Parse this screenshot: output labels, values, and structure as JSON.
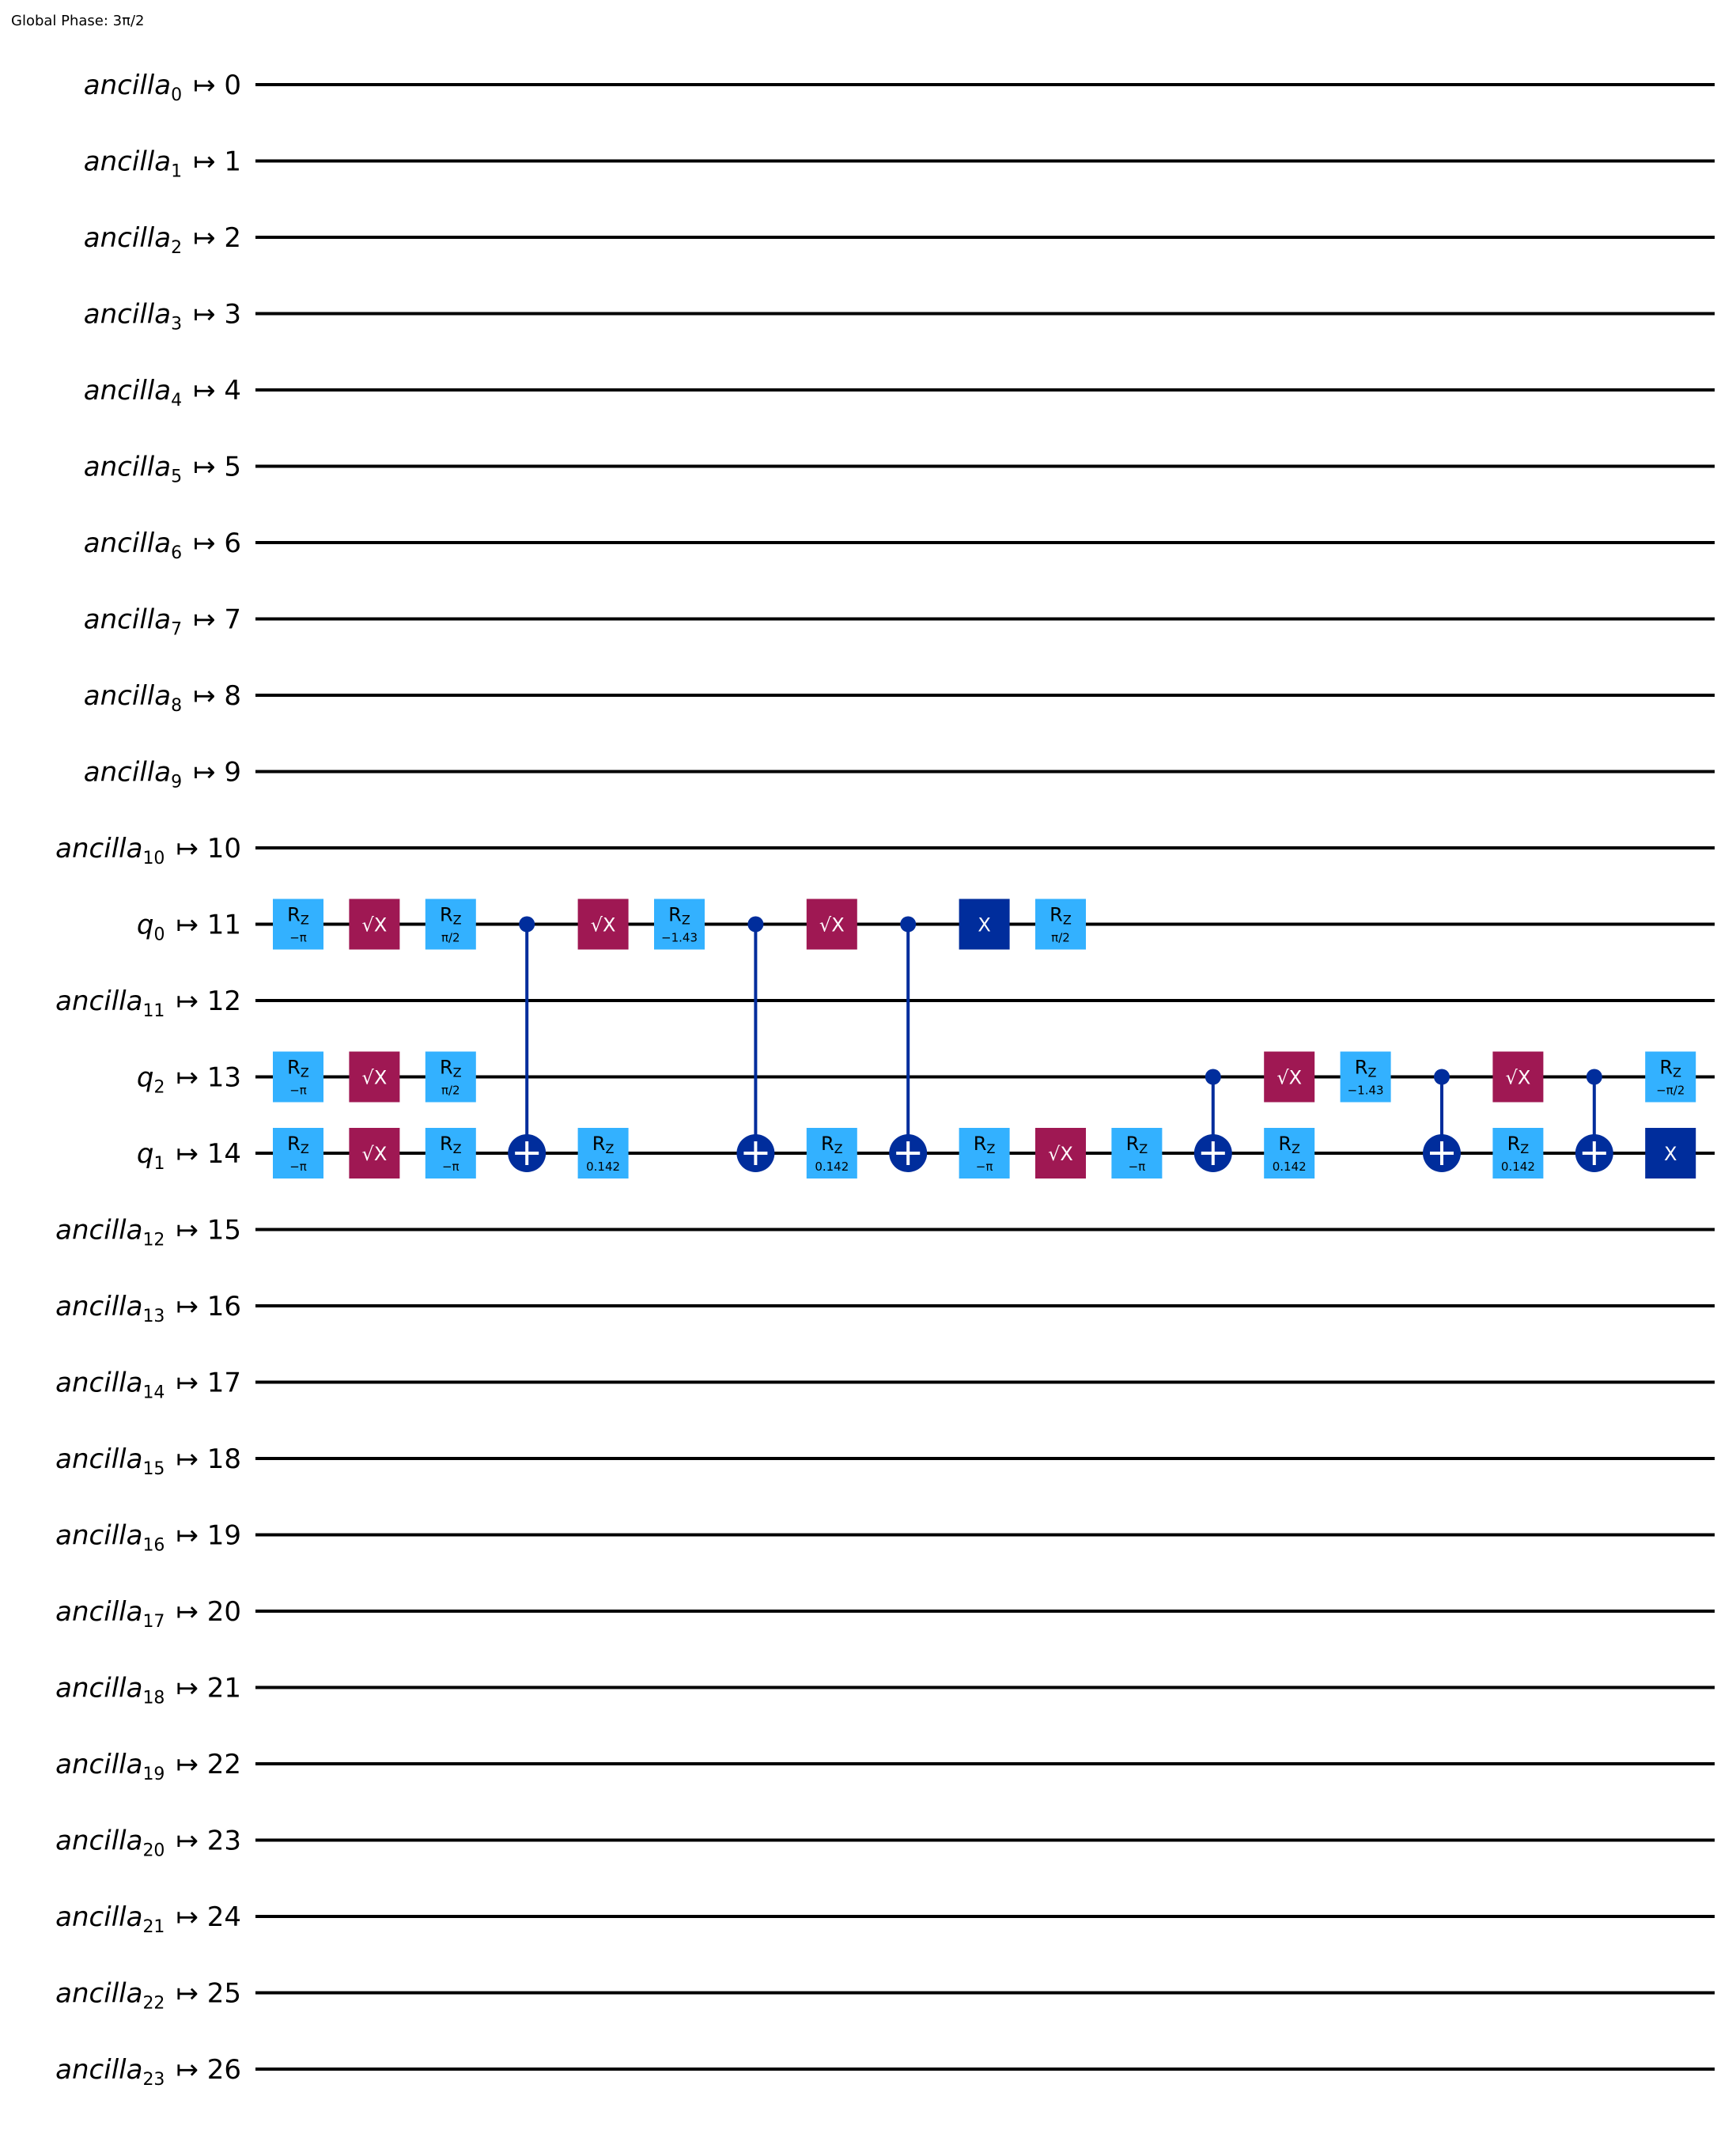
{
  "global_phase": "Global Phase: 3π/2",
  "colors": {
    "rz": "#33b1ff",
    "sx": "#9f1853",
    "x": "#002d9c",
    "cnot": "#002d9c",
    "wire": "#000000",
    "text_dark": "#000000",
    "text_light": "#ffffff"
  },
  "wires": [
    {
      "name": "ancilla",
      "sub": "0",
      "map": "↦ 0"
    },
    {
      "name": "ancilla",
      "sub": "1",
      "map": "↦ 1"
    },
    {
      "name": "ancilla",
      "sub": "2",
      "map": "↦ 2"
    },
    {
      "name": "ancilla",
      "sub": "3",
      "map": "↦ 3"
    },
    {
      "name": "ancilla",
      "sub": "4",
      "map": "↦ 4"
    },
    {
      "name": "ancilla",
      "sub": "5",
      "map": "↦ 5"
    },
    {
      "name": "ancilla",
      "sub": "6",
      "map": "↦ 6"
    },
    {
      "name": "ancilla",
      "sub": "7",
      "map": "↦ 7"
    },
    {
      "name": "ancilla",
      "sub": "8",
      "map": "↦ 8"
    },
    {
      "name": "ancilla",
      "sub": "9",
      "map": "↦ 9"
    },
    {
      "name": "ancilla",
      "sub": "10",
      "map": "↦ 10"
    },
    {
      "name": "q",
      "sub": "0",
      "map": "↦ 11"
    },
    {
      "name": "ancilla",
      "sub": "11",
      "map": "↦ 12"
    },
    {
      "name": "q",
      "sub": "2",
      "map": "↦ 13"
    },
    {
      "name": "q",
      "sub": "1",
      "map": "↦ 14"
    },
    {
      "name": "ancilla",
      "sub": "12",
      "map": "↦ 15"
    },
    {
      "name": "ancilla",
      "sub": "13",
      "map": "↦ 16"
    },
    {
      "name": "ancilla",
      "sub": "14",
      "map": "↦ 17"
    },
    {
      "name": "ancilla",
      "sub": "15",
      "map": "↦ 18"
    },
    {
      "name": "ancilla",
      "sub": "16",
      "map": "↦ 19"
    },
    {
      "name": "ancilla",
      "sub": "17",
      "map": "↦ 20"
    },
    {
      "name": "ancilla",
      "sub": "18",
      "map": "↦ 21"
    },
    {
      "name": "ancilla",
      "sub": "19",
      "map": "↦ 22"
    },
    {
      "name": "ancilla",
      "sub": "20",
      "map": "↦ 23"
    },
    {
      "name": "ancilla",
      "sub": "21",
      "map": "↦ 24"
    },
    {
      "name": "ancilla",
      "sub": "22",
      "map": "↦ 25"
    },
    {
      "name": "ancilla",
      "sub": "23",
      "map": "↦ 26"
    }
  ],
  "gates": [
    {
      "type": "rz",
      "wire": 11,
      "col": 0,
      "param": "−π"
    },
    {
      "type": "rz",
      "wire": 13,
      "col": 0,
      "param": "−π"
    },
    {
      "type": "rz",
      "wire": 14,
      "col": 0,
      "param": "−π"
    },
    {
      "type": "sx",
      "wire": 11,
      "col": 1
    },
    {
      "type": "sx",
      "wire": 13,
      "col": 1
    },
    {
      "type": "sx",
      "wire": 14,
      "col": 1
    },
    {
      "type": "rz",
      "wire": 11,
      "col": 2,
      "param": "π/2"
    },
    {
      "type": "rz",
      "wire": 13,
      "col": 2,
      "param": "π/2"
    },
    {
      "type": "rz",
      "wire": 14,
      "col": 2,
      "param": "−π"
    },
    {
      "type": "cx",
      "control": 11,
      "target": 14,
      "col": 3
    },
    {
      "type": "sx",
      "wire": 11,
      "col": 4
    },
    {
      "type": "rz",
      "wire": 14,
      "col": 4,
      "param": "0.142"
    },
    {
      "type": "rz",
      "wire": 11,
      "col": 5,
      "param": "−1.43"
    },
    {
      "type": "cx",
      "control": 11,
      "target": 14,
      "col": 6
    },
    {
      "type": "sx",
      "wire": 11,
      "col": 7
    },
    {
      "type": "rz",
      "wire": 14,
      "col": 7,
      "param": "0.142"
    },
    {
      "type": "cx",
      "control": 11,
      "target": 14,
      "col": 8
    },
    {
      "type": "x",
      "wire": 11,
      "col": 9
    },
    {
      "type": "rz",
      "wire": 14,
      "col": 9,
      "param": "−π"
    },
    {
      "type": "rz",
      "wire": 11,
      "col": 10,
      "param": "π/2"
    },
    {
      "type": "sx",
      "wire": 14,
      "col": 10
    },
    {
      "type": "rz",
      "wire": 14,
      "col": 11,
      "param": "−π"
    },
    {
      "type": "cx",
      "control": 13,
      "target": 14,
      "col": 12
    },
    {
      "type": "sx",
      "wire": 13,
      "col": 13
    },
    {
      "type": "rz",
      "wire": 14,
      "col": 13,
      "param": "0.142"
    },
    {
      "type": "rz",
      "wire": 13,
      "col": 14,
      "param": "−1.43"
    },
    {
      "type": "cx",
      "control": 13,
      "target": 14,
      "col": 15
    },
    {
      "type": "sx",
      "wire": 13,
      "col": 16
    },
    {
      "type": "rz",
      "wire": 14,
      "col": 16,
      "param": "0.142"
    },
    {
      "type": "cx",
      "control": 13,
      "target": 14,
      "col": 17
    },
    {
      "type": "rz",
      "wire": 13,
      "col": 18,
      "param": "−π/2"
    },
    {
      "type": "x",
      "wire": 14,
      "col": 18
    }
  ],
  "gate_text": {
    "rz_main": "R",
    "rz_sub": "Z",
    "sx": "√X",
    "x": "X"
  }
}
